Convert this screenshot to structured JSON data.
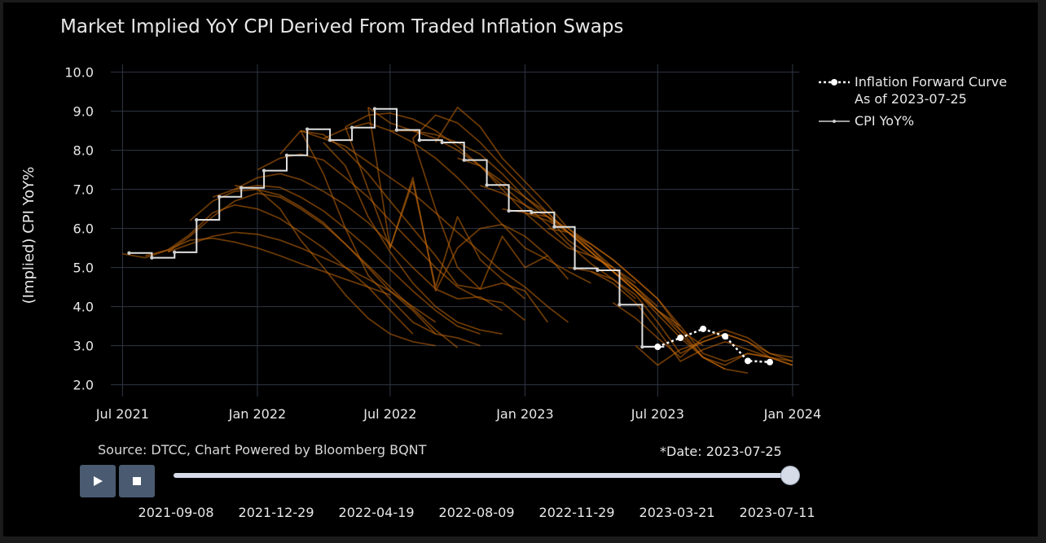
{
  "chart_data": {
    "type": "line",
    "title": "Market Implied YoY CPI Derived From Traded Inflation Swaps",
    "ylabel": "(Implied) CPI YoY%",
    "xlabel": "",
    "x_range": [
      "2021-06-15",
      "2024-01-10"
    ],
    "ylim": [
      1.7,
      10.2
    ],
    "y_ticks": [
      "10.0",
      "9.0",
      "8.0",
      "7.0",
      "6.0",
      "5.0",
      "4.0",
      "3.0",
      "2.0"
    ],
    "x_ticks": [
      {
        "label": "Jul 2021",
        "date": "2021-07-01"
      },
      {
        "label": "Jan 2022",
        "date": "2022-01-01"
      },
      {
        "label": "Jul 2022",
        "date": "2022-07-01"
      },
      {
        "label": "Jan 2023",
        "date": "2023-01-01"
      },
      {
        "label": "Jul 2023",
        "date": "2023-07-01"
      },
      {
        "label": "Jan 2024",
        "date": "2024-01-01"
      }
    ],
    "grid": true,
    "legend_position": "top-right",
    "colors": {
      "cpi": "#e0e0e0",
      "forward": "#ffffff",
      "history": "#c0660a"
    },
    "series": [
      {
        "name": "CPI YoY%",
        "step": true,
        "points": [
          [
            "2021-07-10",
            5.37
          ],
          [
            "2021-08-10",
            5.25
          ],
          [
            "2021-09-10",
            5.39
          ],
          [
            "2021-10-10",
            6.22
          ],
          [
            "2021-11-10",
            6.81
          ],
          [
            "2021-12-10",
            7.04
          ],
          [
            "2022-01-10",
            7.48
          ],
          [
            "2022-02-10",
            7.87
          ],
          [
            "2022-03-10",
            8.54
          ],
          [
            "2022-04-10",
            8.26
          ],
          [
            "2022-05-10",
            8.58
          ],
          [
            "2022-06-10",
            9.06
          ],
          [
            "2022-07-10",
            8.52
          ],
          [
            "2022-08-10",
            8.26
          ],
          [
            "2022-09-10",
            8.2
          ],
          [
            "2022-10-10",
            7.75
          ],
          [
            "2022-11-10",
            7.11
          ],
          [
            "2022-12-10",
            6.45
          ],
          [
            "2023-01-10",
            6.41
          ],
          [
            "2023-02-10",
            6.04
          ],
          [
            "2023-03-10",
            4.98
          ],
          [
            "2023-04-10",
            4.93
          ],
          [
            "2023-05-10",
            4.05
          ],
          [
            "2023-06-10",
            2.97
          ]
        ]
      },
      {
        "name": "Inflation Forward Curve As of 2023-07-25",
        "points": [
          [
            "2023-07-01",
            2.97
          ],
          [
            "2023-08-01",
            3.2
          ],
          [
            "2023-09-01",
            3.43
          ],
          [
            "2023-10-01",
            3.24
          ],
          [
            "2023-11-01",
            2.61
          ],
          [
            "2023-12-01",
            2.58
          ]
        ]
      }
    ],
    "history_curves": [
      {
        "start": "2021-07-01",
        "values": [
          5.35,
          5.25,
          5.45,
          5.7,
          5.75,
          5.65,
          5.5,
          5.3,
          5.1,
          4.9,
          4.7,
          4.5,
          4.3
        ]
      },
      {
        "start": "2021-08-01",
        "values": [
          5.3,
          5.45,
          5.85,
          6.4,
          6.6,
          6.5,
          6.25,
          5.9,
          5.5,
          5.0,
          4.5,
          3.9,
          3.3
        ]
      },
      {
        "start": "2021-09-01",
        "values": [
          5.4,
          5.8,
          6.3,
          6.7,
          6.9,
          6.8,
          6.5,
          6.1,
          5.6,
          5.0,
          4.4,
          3.9,
          3.3
        ]
      },
      {
        "start": "2021-10-01",
        "values": [
          6.2,
          6.7,
          6.95,
          7.0,
          6.85,
          6.55,
          6.15,
          5.6,
          5.05,
          4.5,
          3.95,
          3.4,
          2.95
        ]
      },
      {
        "start": "2021-11-01",
        "values": [
          6.8,
          7.0,
          7.1,
          7.05,
          6.8,
          6.45,
          6.0,
          5.5,
          4.95,
          4.4,
          3.9,
          3.5,
          3.3
        ]
      },
      {
        "start": "2021-12-01",
        "values": [
          7.0,
          7.3,
          7.4,
          7.25,
          6.95,
          6.6,
          6.15,
          5.6,
          5.0,
          4.45,
          4.2,
          4.25,
          3.9
        ]
      },
      {
        "start": "2022-01-01",
        "values": [
          7.5,
          7.8,
          7.9,
          7.75,
          7.3,
          6.8,
          6.2,
          5.6,
          5.0,
          4.5,
          4.2,
          4.1,
          3.65
        ]
      },
      {
        "start": "2022-02-01",
        "values": [
          7.9,
          8.5,
          8.4,
          8.0,
          7.4,
          6.7,
          6.0,
          5.3,
          4.55,
          4.45,
          4.6,
          4.4,
          3.6
        ]
      },
      {
        "start": "2022-03-01",
        "values": [
          8.5,
          8.3,
          8.1,
          7.7,
          7.3,
          6.9,
          6.4,
          5.9,
          5.4,
          4.9,
          4.5,
          4.0,
          3.6
        ]
      },
      {
        "start": "2022-04-01",
        "values": [
          8.3,
          8.55,
          8.7,
          8.5,
          8.2,
          7.8,
          7.3,
          6.7,
          6.1,
          5.5,
          5.2,
          4.9,
          4.6
        ]
      },
      {
        "start": "2022-05-01",
        "values": [
          8.6,
          8.9,
          8.95,
          8.8,
          8.5,
          8.1,
          7.6,
          7.0,
          6.4,
          5.9,
          5.5,
          5.3,
          5.0
        ]
      },
      {
        "start": "2022-06-01",
        "values": [
          9.1,
          8.7,
          8.5,
          8.4,
          8.2,
          7.9,
          7.4,
          6.8,
          6.3,
          5.7,
          5.3,
          5.0,
          4.6
        ]
      },
      {
        "start": "2022-07-01",
        "values": [
          8.5,
          8.5,
          8.3,
          8.0,
          7.6,
          7.1,
          6.6,
          6.1,
          5.6,
          5.1,
          4.7,
          4.2
        ]
      },
      {
        "start": "2022-08-01",
        "values": [
          8.3,
          8.9,
          8.7,
          8.2,
          7.6,
          7.0,
          6.4,
          5.9,
          5.4,
          4.9,
          4.5,
          4.0
        ]
      },
      {
        "start": "2022-09-01",
        "values": [
          8.2,
          9.1,
          8.6,
          7.8,
          7.2,
          6.6,
          6.0,
          5.5,
          4.9,
          4.4,
          3.9,
          3.5
        ]
      },
      {
        "start": "2022-10-01",
        "values": [
          7.8,
          7.6,
          7.2,
          6.8,
          6.4,
          5.9,
          5.4,
          4.9,
          4.4,
          3.9,
          3.4,
          3.0
        ]
      },
      {
        "start": "2022-11-01",
        "values": [
          7.1,
          6.9,
          6.6,
          6.3,
          5.9,
          5.4,
          4.9,
          4.4,
          3.8,
          3.2,
          2.7,
          2.4
        ]
      },
      {
        "start": "2022-12-01",
        "values": [
          6.5,
          6.4,
          6.2,
          5.9,
          5.5,
          5.0,
          4.5,
          3.9,
          3.3,
          2.7,
          2.4,
          2.3
        ]
      },
      {
        "start": "2023-01-01",
        "values": [
          6.4,
          6.3,
          6.0,
          5.6,
          5.2,
          4.7,
          4.2,
          3.5,
          2.8,
          2.6,
          2.8,
          2.7
        ]
      },
      {
        "start": "2023-02-01",
        "values": [
          6.0,
          5.9,
          5.6,
          5.2,
          4.7,
          4.2,
          3.4,
          2.7,
          2.5,
          2.8,
          2.7,
          2.5
        ]
      },
      {
        "start": "2023-03-01",
        "values": [
          5.0,
          4.9,
          4.6,
          4.1,
          3.4,
          2.6,
          2.9,
          3.1,
          2.9,
          2.7,
          2.5
        ]
      },
      {
        "start": "2023-04-01",
        "values": [
          4.9,
          4.7,
          4.3,
          3.6,
          2.8,
          3.1,
          3.3,
          3.1,
          2.8,
          2.6
        ]
      },
      {
        "start": "2023-05-01",
        "values": [
          4.1,
          3.7,
          3.2,
          2.7,
          3.2,
          3.4,
          3.2,
          2.8,
          2.7
        ]
      },
      {
        "start": "2023-06-01",
        "values": [
          3.0,
          2.5,
          2.9,
          3.1,
          3.3,
          3.1,
          2.7,
          2.6
        ]
      },
      {
        "start": "2021-09-01",
        "values": [
          5.4,
          5.6,
          5.8,
          5.9,
          5.85,
          5.7,
          5.5,
          5.25,
          5.0,
          4.7,
          4.4,
          4.0,
          3.6
        ]
      },
      {
        "start": "2021-12-01",
        "values": [
          7.1,
          7.0,
          6.5,
          5.7,
          5.0,
          4.3,
          3.7,
          3.3,
          3.1,
          3.0
        ]
      },
      {
        "start": "2022-03-01",
        "values": [
          8.5,
          7.4,
          6.0,
          4.8,
          4.2,
          3.6,
          3.3,
          3.2,
          3.0
        ]
      },
      {
        "start": "2022-04-01",
        "values": [
          8.2,
          7.6,
          6.3,
          5.4,
          4.6,
          4.0,
          3.6,
          3.4,
          3.3
        ]
      },
      {
        "start": "2022-05-01",
        "values": [
          8.6,
          7.0,
          5.5,
          7.2,
          4.5,
          6.3,
          5.2,
          4.7,
          4.2
        ]
      },
      {
        "start": "2022-06-01",
        "values": [
          9.1,
          5.5,
          7.3,
          4.4,
          5.5,
          6.0,
          6.1,
          5.8,
          5.3,
          4.7
        ]
      },
      {
        "start": "2022-08-01",
        "values": [
          8.3,
          6.5,
          5.0,
          4.45,
          5.8,
          5.0,
          5.3
        ]
      }
    ]
  },
  "legend": {
    "forward_line1": "Inflation Forward Curve",
    "forward_line2": "As of 2023-07-25",
    "cpi": "CPI YoY%"
  },
  "source": "Source: DTCC, Chart Powered by Bloomberg BQNT",
  "date_label": "*Date: 2023-07-25",
  "controls": {
    "play_icon": "play-icon",
    "stop_icon": "stop-icon"
  },
  "slider": {
    "value_fraction": 1.0,
    "ticks": [
      "2021-09-08",
      "2021-12-29",
      "2022-04-19",
      "2022-08-09",
      "2022-11-29",
      "2023-03-21",
      "2023-07-11"
    ]
  }
}
